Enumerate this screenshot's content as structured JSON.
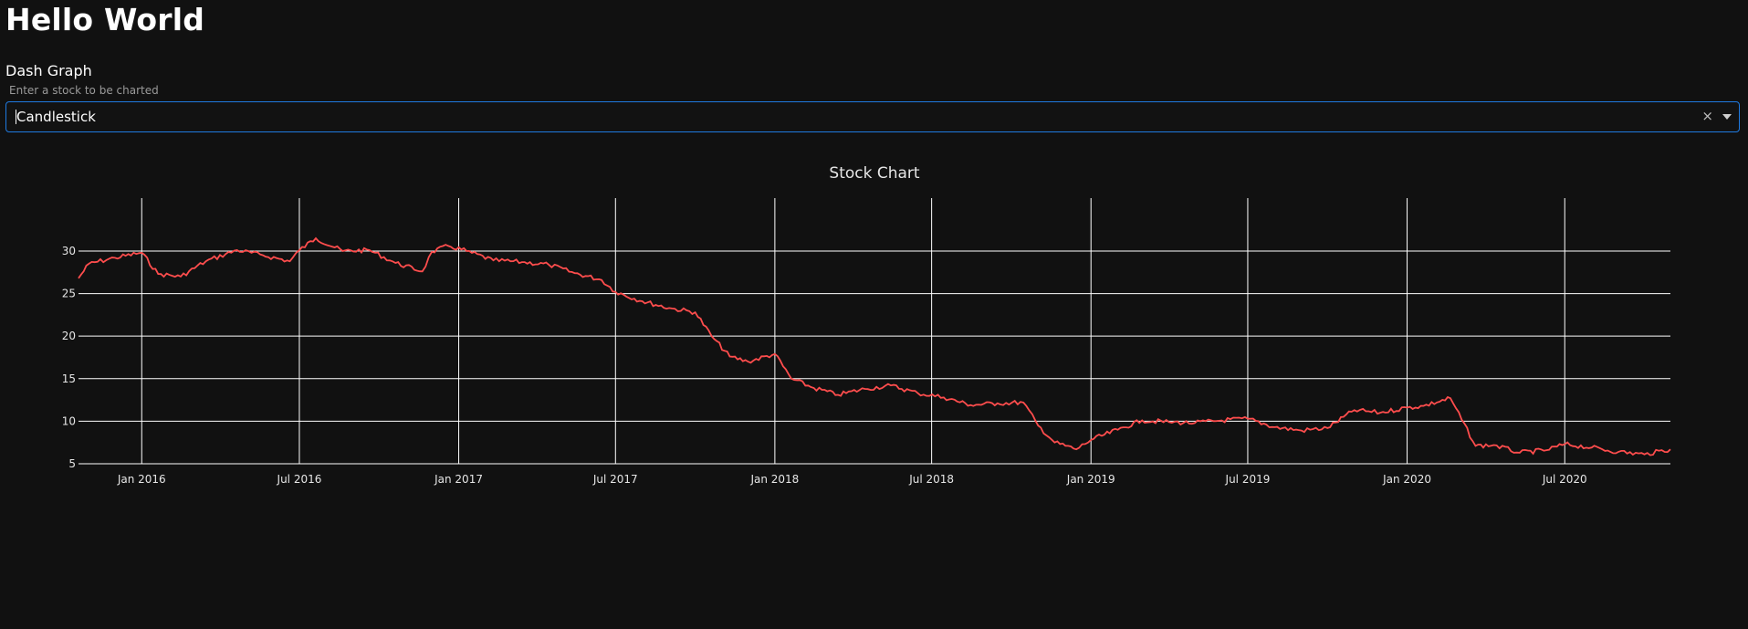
{
  "page": {
    "title": "Hello World",
    "subtitle": "Dash Graph"
  },
  "dropdown": {
    "hint": "Enter a stock to be charted",
    "value": "Candlestick",
    "clear_glyph": "×"
  },
  "colors": {
    "background": "#111111",
    "line": "#ff4d4d",
    "grid": "#ffffff",
    "focus_border": "#1f7ae0"
  },
  "chart_data": {
    "type": "line",
    "title": "Stock Chart",
    "xlabel": "",
    "ylabel": "",
    "grid": true,
    "xlim": [
      "2015-10-20",
      "2020-10-31"
    ],
    "ylim": [
      5,
      33
    ],
    "yticks": [
      5,
      10,
      15,
      20,
      25,
      30
    ],
    "xticks": [
      {
        "date": "2016-01-01",
        "label": "Jan 2016"
      },
      {
        "date": "2016-07-01",
        "label": "Jul 2016"
      },
      {
        "date": "2017-01-01",
        "label": "Jan 2017"
      },
      {
        "date": "2017-07-01",
        "label": "Jul 2017"
      },
      {
        "date": "2018-01-01",
        "label": "Jan 2018"
      },
      {
        "date": "2018-07-01",
        "label": "Jul 2018"
      },
      {
        "date": "2019-01-01",
        "label": "Jan 2019"
      },
      {
        "date": "2019-07-01",
        "label": "Jul 2019"
      },
      {
        "date": "2020-01-01",
        "label": "Jan 2020"
      },
      {
        "date": "2020-07-01",
        "label": "Jul 2020"
      }
    ],
    "series": [
      {
        "x": [
          "2015-10-20",
          "2015-11-01",
          "2015-12-01",
          "2016-01-01",
          "2016-01-20",
          "2016-02-15",
          "2016-03-15",
          "2016-04-20",
          "2016-05-20",
          "2016-06-20",
          "2016-07-01",
          "2016-07-20",
          "2016-08-20",
          "2016-09-20",
          "2016-10-20",
          "2016-11-20",
          "2016-12-01",
          "2016-12-20",
          "2017-01-10",
          "2017-02-10",
          "2017-03-15",
          "2017-04-15",
          "2017-05-15",
          "2017-06-15",
          "2017-07-01",
          "2017-08-01",
          "2017-09-01",
          "2017-10-01",
          "2017-10-20",
          "2017-11-10",
          "2017-12-01",
          "2018-01-01",
          "2018-01-20",
          "2018-02-15",
          "2018-03-15",
          "2018-04-15",
          "2018-05-15",
          "2018-06-15",
          "2018-07-15",
          "2018-08-15",
          "2018-09-15",
          "2018-10-15",
          "2018-11-01",
          "2018-11-20",
          "2018-12-15",
          "2019-01-01",
          "2019-02-01",
          "2019-03-01",
          "2019-04-01",
          "2019-05-01",
          "2019-06-01",
          "2019-07-01",
          "2019-08-01",
          "2019-09-01",
          "2019-10-01",
          "2019-11-01",
          "2019-12-01",
          "2020-01-01",
          "2020-01-20",
          "2020-02-20",
          "2020-03-20",
          "2020-04-10",
          "2020-05-10",
          "2020-06-10",
          "2020-07-01",
          "2020-08-01",
          "2020-09-01",
          "2020-10-01",
          "2020-10-31"
        ],
        "values": [
          26.8,
          28.5,
          29.2,
          29.8,
          27.3,
          27.0,
          28.8,
          30.1,
          29.5,
          28.8,
          30.1,
          31.5,
          30.0,
          30.1,
          28.6,
          27.6,
          29.9,
          30.6,
          30.0,
          28.9,
          28.7,
          28.4,
          27.4,
          26.6,
          25.2,
          24.1,
          23.3,
          22.8,
          20.0,
          17.6,
          17.0,
          17.9,
          15.0,
          13.9,
          13.1,
          13.8,
          14.2,
          13.3,
          12.8,
          11.9,
          12.1,
          12.2,
          9.5,
          7.5,
          6.7,
          7.8,
          9.0,
          10.1,
          9.9,
          9.8,
          10.1,
          10.3,
          9.3,
          8.9,
          9.2,
          11.3,
          11.0,
          11.6,
          11.8,
          12.7,
          7.1,
          7.2,
          6.3,
          6.6,
          7.3,
          6.9,
          6.4,
          6.1,
          6.7
        ]
      }
    ]
  }
}
